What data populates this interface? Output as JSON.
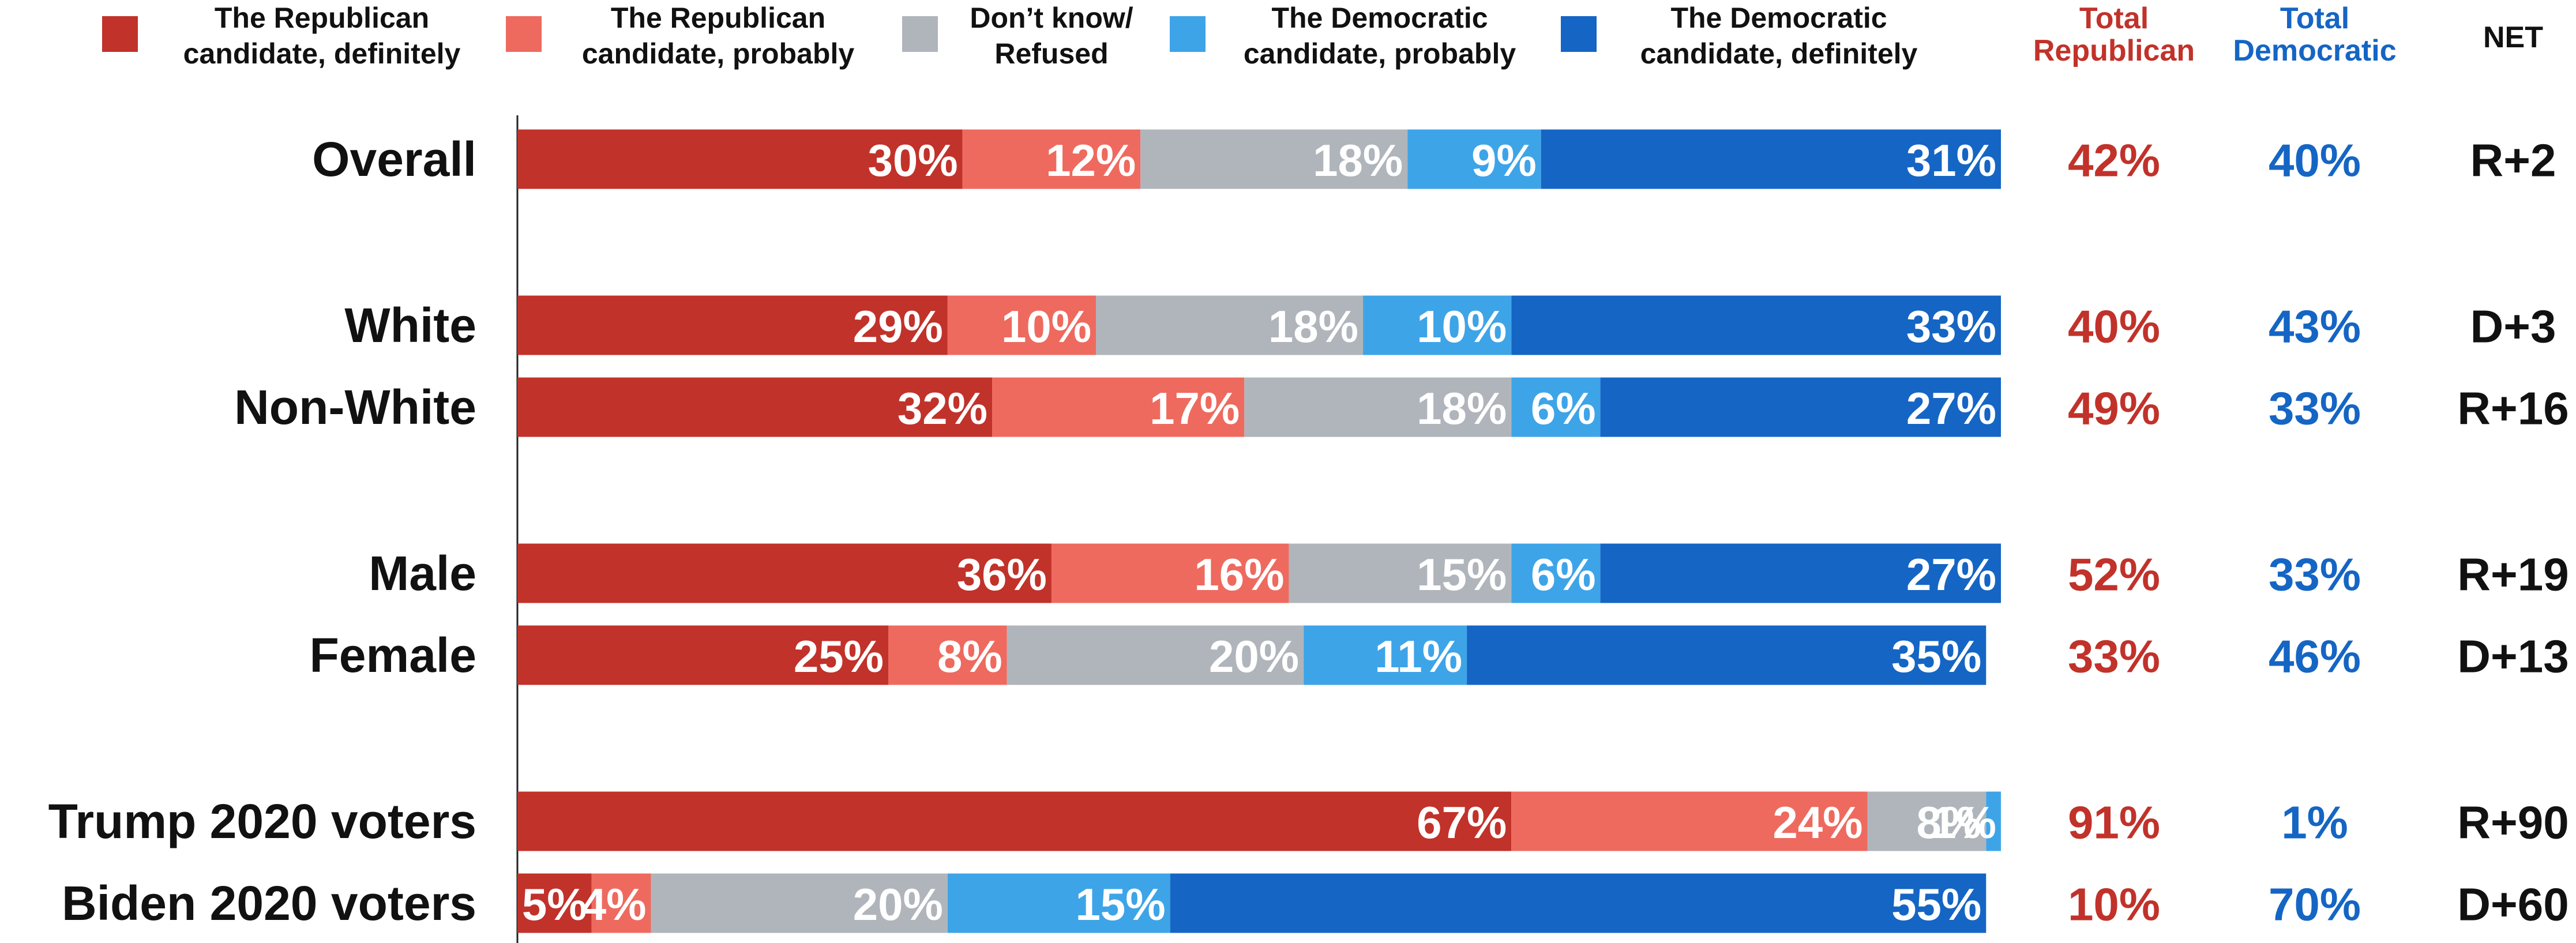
{
  "chart_data": {
    "type": "stacked_bar_horizontal",
    "categories": [
      "Overall",
      "White",
      "Non-White",
      "Male",
      "Female",
      "Trump 2020 voters",
      "Biden 2020 voters"
    ],
    "xlim": [
      0,
      100
    ],
    "series": [
      {
        "name": "The Republican candidate, definitely",
        "color": "#c1322a",
        "values": [
          30,
          29,
          32,
          36,
          25,
          67,
          5
        ],
        "value_labels": [
          "30%",
          "29%",
          "32%",
          "36%",
          "25%",
          "67%",
          "5%"
        ]
      },
      {
        "name": "The Republican candidate, probably",
        "color": "#ee6a5f",
        "values": [
          12,
          10,
          17,
          16,
          8,
          24,
          4
        ],
        "value_labels": [
          "12%",
          "10%",
          "17%",
          "16%",
          "8%",
          "24%",
          "4%"
        ]
      },
      {
        "name": "Don’t know/ Refused",
        "color": "#b0b5bb",
        "values": [
          18,
          18,
          18,
          15,
          20,
          8,
          20
        ],
        "value_labels": [
          "18%",
          "18%",
          "18%",
          "15%",
          "20%",
          "8%",
          "20%"
        ]
      },
      {
        "name": "The Democratic candidate, probably",
        "color": "#3ea4e8",
        "values": [
          9,
          10,
          6,
          6,
          11,
          1,
          15
        ],
        "value_labels": [
          "9%",
          "10%",
          "6%",
          "6%",
          "11%",
          "1%",
          "15%"
        ]
      },
      {
        "name": "The Democratic candidate, definitely",
        "color": "#1565c4",
        "values": [
          31,
          33,
          27,
          27,
          35,
          0,
          55
        ],
        "value_labels": [
          "31%",
          "33%",
          "27%",
          "27%",
          "35%",
          null,
          "55%"
        ]
      }
    ],
    "columns": [
      {
        "header": "Total Republican",
        "color": "#c1322a",
        "values": [
          42,
          40,
          49,
          52,
          33,
          91,
          10
        ],
        "value_labels": [
          "42%",
          "40%",
          "49%",
          "52%",
          "33%",
          "91%",
          "10%"
        ]
      },
      {
        "header": "Total Democratic",
        "color": "#1565c4",
        "values": [
          40,
          43,
          33,
          33,
          46,
          1,
          70
        ],
        "value_labels": [
          "40%",
          "43%",
          "33%",
          "33%",
          "46%",
          "1%",
          "70%"
        ]
      },
      {
        "header": "NET",
        "color": "#111111",
        "values": [
          "R+2",
          "D+3",
          "R+16",
          "R+19",
          "D+13",
          "R+90",
          "D+60"
        ]
      }
    ]
  }
}
